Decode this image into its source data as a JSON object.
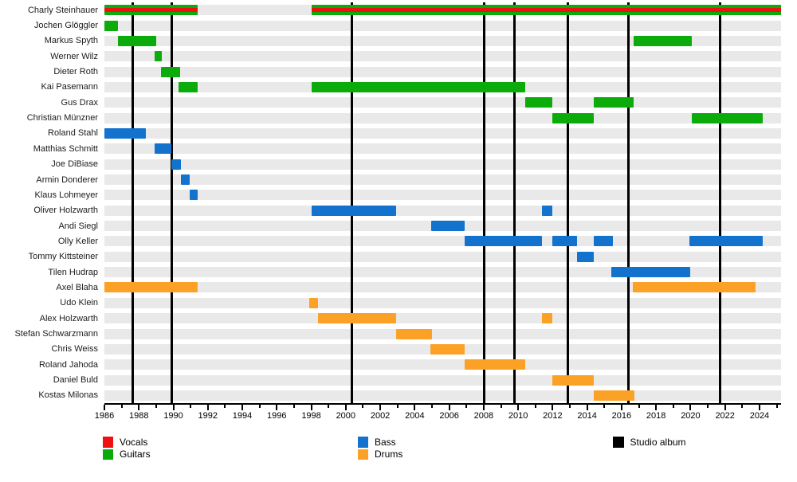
{
  "chart_data": {
    "type": "bar",
    "variant": "band-membership-timeline-gantt",
    "x_axis": {
      "min": 1986,
      "max": 2025.25,
      "major_ticks": [
        1986,
        1988,
        1990,
        1992,
        1994,
        1996,
        1998,
        2000,
        2002,
        2004,
        2006,
        2008,
        2010,
        2012,
        2014,
        2016,
        2018,
        2020,
        2022,
        2024
      ],
      "minor_tick_step": 1
    },
    "roles": {
      "vocals": {
        "label": "Vocals",
        "color": "#ee1111"
      },
      "guitars": {
        "label": "Guitars",
        "color": "#0cab0c"
      },
      "bass": {
        "label": "Bass",
        "color": "#1272cd"
      },
      "drums": {
        "label": "Drums",
        "color": "#fba226"
      }
    },
    "albums": {
      "label": "Studio album",
      "color": "#000000",
      "years": [
        1987.65,
        1989.9,
        2000.35,
        2008.05,
        2009.8,
        2012.9,
        2016.4,
        2021.7
      ]
    },
    "members": [
      {
        "name": "Charly Steinhauer",
        "roles": [
          "guitars",
          "vocals"
        ],
        "periods": [
          [
            1986,
            1991.4
          ],
          [
            1998,
            2025.25
          ]
        ]
      },
      {
        "name": "Jochen Glöggler",
        "roles": [
          "guitars"
        ],
        "periods": [
          [
            1986,
            1986.8
          ]
        ]
      },
      {
        "name": "Markus Spyth",
        "roles": [
          "guitars"
        ],
        "periods": [
          [
            1986.8,
            1989.0
          ],
          [
            2016.7,
            2020.05
          ]
        ]
      },
      {
        "name": "Werner Wilz",
        "roles": [
          "guitars"
        ],
        "periods": [
          [
            1988.9,
            1989.35
          ]
        ]
      },
      {
        "name": "Dieter Roth",
        "roles": [
          "guitars"
        ],
        "periods": [
          [
            1989.3,
            1990.4
          ]
        ]
      },
      {
        "name": "Kai Pasemann",
        "roles": [
          "guitars"
        ],
        "periods": [
          [
            1990.3,
            1991.4
          ],
          [
            1998,
            2010.4
          ]
        ]
      },
      {
        "name": "Gus Drax",
        "roles": [
          "guitars"
        ],
        "periods": [
          [
            2010.4,
            2012.0
          ],
          [
            2014.4,
            2016.7
          ]
        ]
      },
      {
        "name": "Christian Münzner",
        "roles": [
          "guitars"
        ],
        "periods": [
          [
            2012.0,
            2014.4
          ],
          [
            2020.05,
            2024.2
          ]
        ]
      },
      {
        "name": "Roland Stahl",
        "roles": [
          "bass"
        ],
        "periods": [
          [
            1986,
            1988.4
          ]
        ]
      },
      {
        "name": "Matthias Schmitt",
        "roles": [
          "bass"
        ],
        "periods": [
          [
            1988.9,
            1989.9
          ]
        ]
      },
      {
        "name": "Joe DiBiase",
        "roles": [
          "bass"
        ],
        "periods": [
          [
            1989.9,
            1990.45
          ]
        ]
      },
      {
        "name": "Armin Donderer",
        "roles": [
          "bass"
        ],
        "periods": [
          [
            1990.45,
            1990.95
          ]
        ]
      },
      {
        "name": "Klaus Lohmeyer",
        "roles": [
          "bass"
        ],
        "periods": [
          [
            1990.95,
            1991.4
          ]
        ]
      },
      {
        "name": "Oliver Holzwarth",
        "roles": [
          "bass"
        ],
        "periods": [
          [
            1998,
            2002.9
          ],
          [
            2011.4,
            2012.0
          ]
        ]
      },
      {
        "name": "Andi Siegl",
        "roles": [
          "bass"
        ],
        "periods": [
          [
            2004.95,
            2006.9
          ]
        ]
      },
      {
        "name": "Olly Keller",
        "roles": [
          "bass"
        ],
        "periods": [
          [
            2006.9,
            2011.4
          ],
          [
            2012.0,
            2013.4
          ],
          [
            2014.4,
            2015.5
          ],
          [
            2019.95,
            2024.2
          ]
        ]
      },
      {
        "name": "Tommy Kittsteiner",
        "roles": [
          "bass"
        ],
        "periods": [
          [
            2013.4,
            2014.4
          ]
        ]
      },
      {
        "name": "Tilen Hudrap",
        "roles": [
          "bass"
        ],
        "periods": [
          [
            2015.4,
            2020.0
          ]
        ]
      },
      {
        "name": "Axel Blaha",
        "roles": [
          "drums"
        ],
        "periods": [
          [
            1986,
            1991.4
          ],
          [
            2016.65,
            2023.75
          ]
        ]
      },
      {
        "name": "Udo Klein",
        "roles": [
          "drums"
        ],
        "periods": [
          [
            1997.9,
            1998.4
          ]
        ]
      },
      {
        "name": "Alex Holzwarth",
        "roles": [
          "drums"
        ],
        "periods": [
          [
            1998.4,
            2002.9
          ],
          [
            2011.4,
            2012.0
          ]
        ]
      },
      {
        "name": "Stefan Schwarzmann",
        "roles": [
          "drums"
        ],
        "periods": [
          [
            2002.9,
            2005.0
          ]
        ]
      },
      {
        "name": "Chris Weiss",
        "roles": [
          "drums"
        ],
        "periods": [
          [
            2004.9,
            2006.9
          ]
        ]
      },
      {
        "name": "Roland Jahoda",
        "roles": [
          "drums"
        ],
        "periods": [
          [
            2006.9,
            2010.4
          ]
        ]
      },
      {
        "name": "Daniel Buld",
        "roles": [
          "drums"
        ],
        "periods": [
          [
            2012.0,
            2014.4
          ]
        ]
      },
      {
        "name": "Kostas Milonas",
        "roles": [
          "drums"
        ],
        "periods": [
          [
            2014.4,
            2016.75
          ]
        ]
      }
    ],
    "colors": {
      "row_band": "#e9e9e9",
      "background": "#ffffff",
      "axis": "#000000"
    }
  },
  "legend": {
    "items": [
      {
        "label": "Vocals",
        "color": "#ee1111"
      },
      {
        "label": "Guitars",
        "color": "#0cab0c"
      },
      {
        "label": "Bass",
        "color": "#1272cd"
      },
      {
        "label": "Drums",
        "color": "#fba226"
      },
      {
        "label": "Studio album",
        "color": "#000000"
      }
    ]
  }
}
